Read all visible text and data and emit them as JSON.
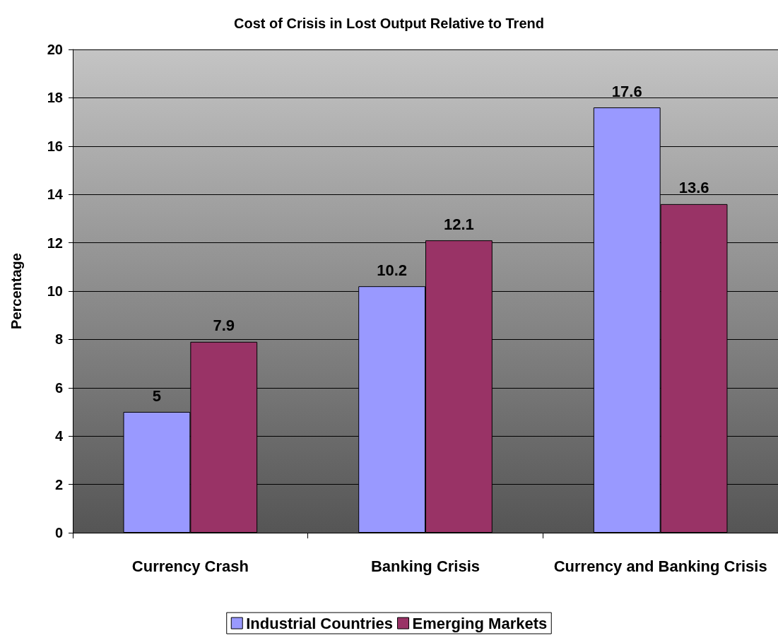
{
  "chart_data": {
    "type": "bar",
    "title": "Cost of Crisis in Lost Output Relative to Trend",
    "ylabel": "Percentage",
    "categories": [
      "Currency Crash",
      "Banking Crisis",
      "Currency and Banking Crisis"
    ],
    "series": [
      {
        "name": "Industrial Countries",
        "color": "#9999ff",
        "values": [
          5,
          10.2,
          17.6
        ]
      },
      {
        "name": "Emerging Markets",
        "color": "#993366",
        "values": [
          7.9,
          12.1,
          13.6
        ]
      }
    ],
    "ylim": [
      0,
      20
    ],
    "yticks": [
      0,
      2,
      4,
      6,
      8,
      10,
      12,
      14,
      16,
      18,
      20
    ],
    "grid": "y",
    "legend": "bottom",
    "data_labels": true
  }
}
